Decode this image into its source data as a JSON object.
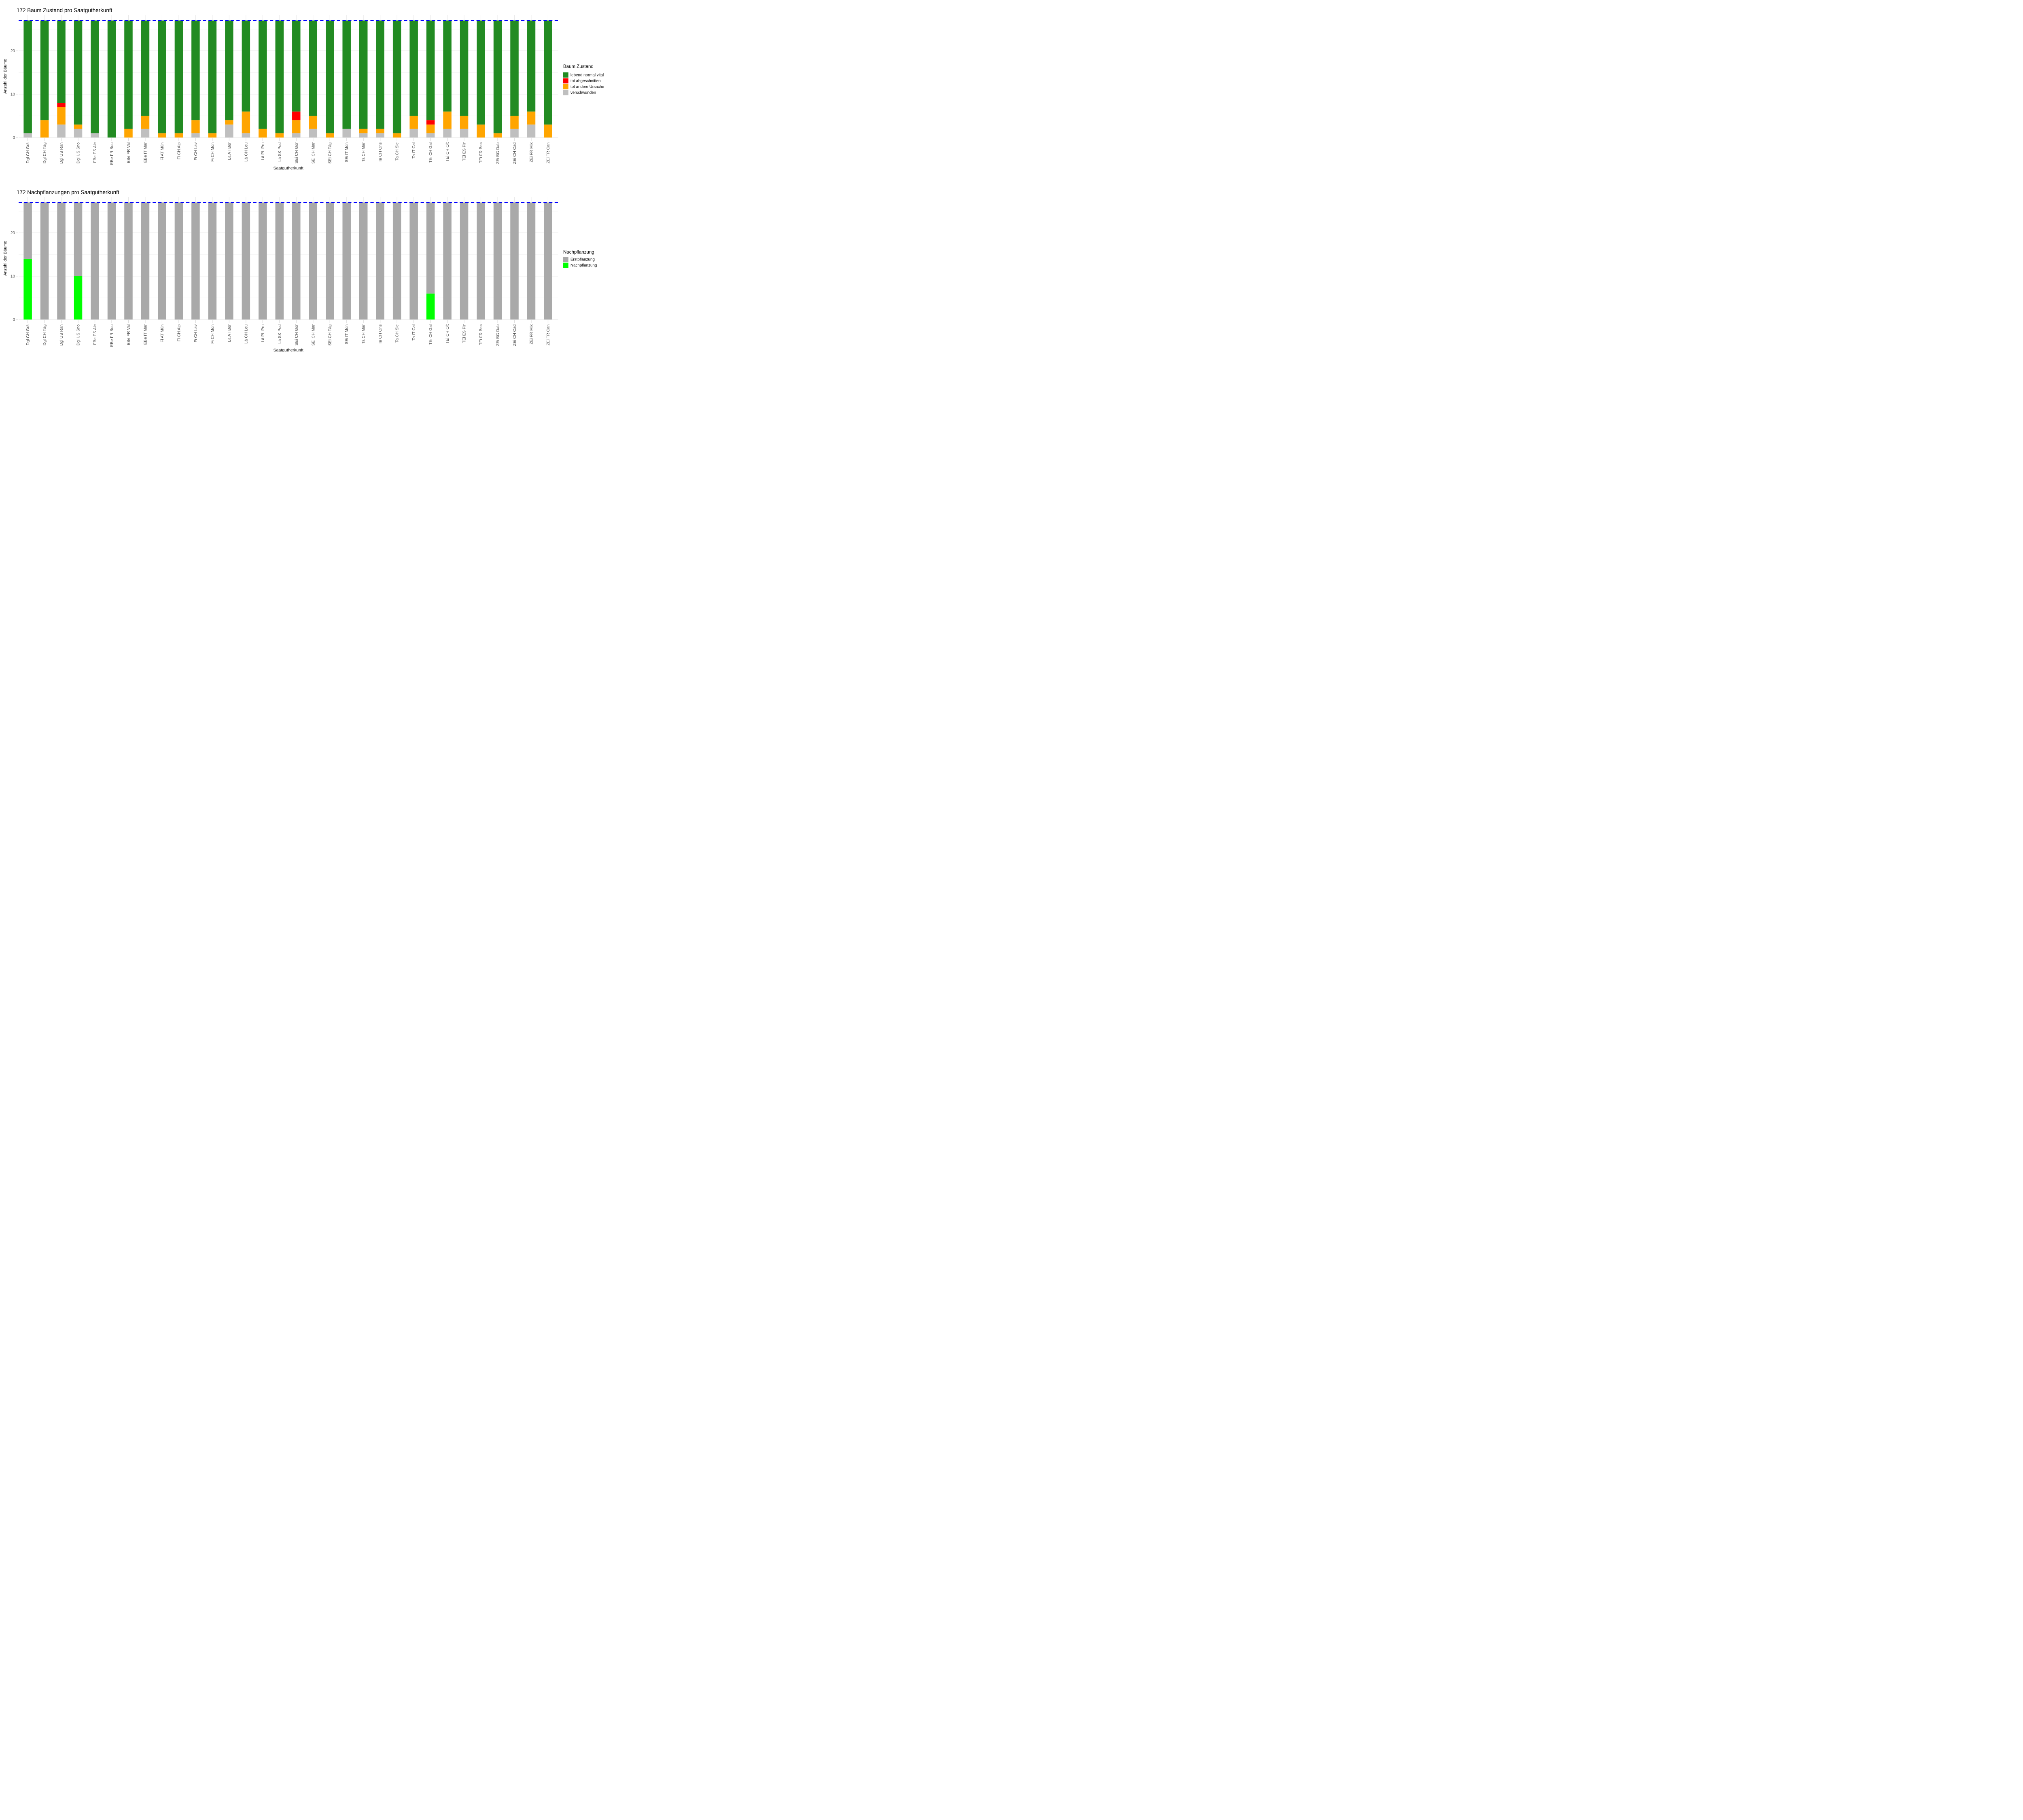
{
  "page": {
    "background": "#FFFFFF"
  },
  "chart_data": [
    {
      "type": "bar",
      "stacked": true,
      "title": "172 Baum Zustand pro Saatgutherkunft",
      "xlabel": "Saatgutherkunft",
      "ylabel": "Anzahl der Bäume",
      "y_ticks": [
        0,
        10,
        20
      ],
      "y_minor_ticks": [
        5,
        15,
        25
      ],
      "ylim": [
        0,
        28.3
      ],
      "grid": true,
      "legend_position": "right",
      "reference_line": {
        "y": 27,
        "color": "#0000FF",
        "style": "dashed"
      },
      "legend": {
        "title": "Baum Zustand",
        "items": [
          {
            "label": "lebend normal vital",
            "color": "#228B22"
          },
          {
            "label": "tot abgeschnitten",
            "color": "#FF0000"
          },
          {
            "label": "tot andere Ursache",
            "color": "#FFA500"
          },
          {
            "label": "verschwunden",
            "color": "#BFBFBF"
          }
        ]
      },
      "categories": [
        "Dgl CH Grä",
        "Dgl CH Täg",
        "Dgl US Ran",
        "Dgl US Sno",
        "EBe ES Alc",
        "EBe FR Bou",
        "EBe FR Val",
        "EBe IT Mar",
        "Fi AT Mün",
        "Fi CH Alp",
        "Fi CH Lav",
        "Fi CH Mon",
        "Lä AT Ber",
        "Lä CH Leu",
        "Lä PL Pru",
        "Lä SK Pod",
        "SEi CH Gor",
        "SEi CH Mar",
        "SEi CH Täg",
        "SEi IT Mon",
        "Ta CH Mar",
        "Ta CH Ons",
        "Ta CH Sie",
        "Ta IT Cal",
        "TEi CH Gal",
        "TEi CH Olt",
        "TEi ES Pir",
        "TEi FR Bas",
        "ZEi BG Dab",
        "ZEi CH Cad",
        "ZEi FR Mix",
        "ZEi TR Can"
      ],
      "series": [
        {
          "name": "verschwunden",
          "color": "#BFBFBF",
          "values": [
            1,
            0,
            3,
            2,
            1,
            0,
            0,
            2,
            0,
            0,
            1,
            0,
            3,
            1,
            0,
            0,
            1,
            2,
            0,
            2,
            1,
            1,
            0,
            2,
            1,
            2,
            2,
            0,
            0,
            2,
            3,
            0
          ]
        },
        {
          "name": "tot andere Ursache",
          "color": "#FFA500",
          "values": [
            0,
            4,
            4,
            1,
            0,
            0,
            2,
            3,
            1,
            1,
            3,
            1,
            1,
            5,
            2,
            1,
            3,
            3,
            1,
            0,
            1,
            1,
            1,
            3,
            2,
            4,
            3,
            3,
            1,
            3,
            3,
            3
          ]
        },
        {
          "name": "tot abgeschnitten",
          "color": "#FF0000",
          "values": [
            0,
            0,
            1,
            0,
            0,
            0,
            0,
            0,
            0,
            0,
            0,
            0,
            0,
            0,
            0,
            0,
            2,
            0,
            0,
            0,
            0,
            0,
            0,
            0,
            1,
            0,
            0,
            0,
            0,
            0,
            0,
            0
          ]
        },
        {
          "name": "lebend normal vital",
          "color": "#228B22",
          "values": [
            26,
            23,
            19,
            24,
            26,
            27,
            25,
            22,
            26,
            26,
            23,
            26,
            23,
            21,
            25,
            26,
            21,
            22,
            26,
            25,
            25,
            25,
            26,
            22,
            23,
            21,
            22,
            24,
            26,
            22,
            21,
            24
          ]
        }
      ]
    },
    {
      "type": "bar",
      "stacked": true,
      "title": "172 Nachpflanzungen pro Saatgutherkunft",
      "xlabel": "Saatgutherkunft",
      "ylabel": "Anzahl der Bäume",
      "y_ticks": [
        0,
        10,
        20
      ],
      "y_minor_ticks": [
        5,
        15,
        25
      ],
      "ylim": [
        0,
        28.3
      ],
      "grid": true,
      "legend_position": "right",
      "reference_line": {
        "y": 27,
        "color": "#0000FF",
        "style": "dashed"
      },
      "legend": {
        "title": "Nachpflanzung",
        "items": [
          {
            "label": "Erstpflanzung",
            "color": "#A9A9A9"
          },
          {
            "label": "Nachpflanzung",
            "color": "#00FF00"
          }
        ]
      },
      "categories": [
        "Dgl CH Grä",
        "Dgl CH Täg",
        "Dgl US Ran",
        "Dgl US Sno",
        "EBe ES Alc",
        "EBe FR Bou",
        "EBe FR Val",
        "EBe IT Mar",
        "Fi AT Mün",
        "Fi CH Alp",
        "Fi CH Lav",
        "Fi CH Mon",
        "Lä AT Ber",
        "Lä CH Leu",
        "Lä PL Pru",
        "Lä SK Pod",
        "SEi CH Gor",
        "SEi CH Mar",
        "SEi CH Täg",
        "SEi IT Mon",
        "Ta CH Mar",
        "Ta CH Ons",
        "Ta CH Sie",
        "Ta IT Cal",
        "TEi CH Gal",
        "TEi CH Olt",
        "TEi ES Pir",
        "TEi FR Bas",
        "ZEi BG Dab",
        "ZEi CH Cad",
        "ZEi FR Mix",
        "ZEi TR Can"
      ],
      "series": [
        {
          "name": "Nachpflanzung",
          "color": "#00FF00",
          "values": [
            14,
            0,
            0,
            10,
            0,
            0,
            0,
            0,
            0,
            0,
            0,
            0,
            0,
            0,
            0,
            0,
            0,
            0,
            0,
            0,
            0,
            0,
            0,
            0,
            6,
            0,
            0,
            0,
            0,
            0,
            0,
            0
          ]
        },
        {
          "name": "Erstpflanzung",
          "color": "#A9A9A9",
          "values": [
            13,
            27,
            27,
            17,
            27,
            27,
            27,
            27,
            27,
            27,
            27,
            27,
            27,
            27,
            27,
            27,
            27,
            27,
            27,
            27,
            27,
            27,
            27,
            27,
            21,
            27,
            27,
            27,
            27,
            27,
            27,
            27
          ]
        }
      ]
    }
  ]
}
